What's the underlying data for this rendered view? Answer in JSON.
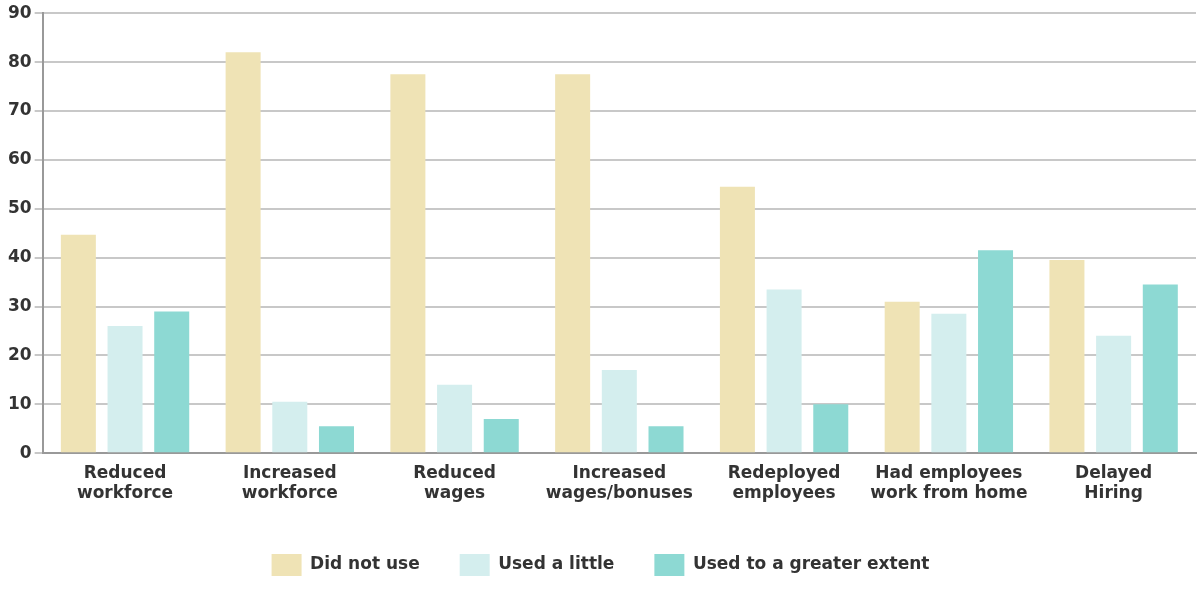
{
  "chart_data": {
    "type": "bar",
    "categories": [
      "Reduced workforce",
      "Increased workforce",
      "Reduced wages",
      "Increased wages/bonuses",
      "Redeployed employees",
      "Had employees work from home",
      "Delayed Hiring"
    ],
    "series": [
      {
        "name": "Did not use",
        "color": "#efe3b5",
        "values": [
          44.7,
          82,
          77.5,
          77.5,
          54.5,
          31,
          39.5
        ]
      },
      {
        "name": "Used a little",
        "color": "#d4eeee",
        "values": [
          26,
          10.5,
          14,
          17,
          33.5,
          28.5,
          24
        ]
      },
      {
        "name": "Used to a greater extent",
        "color": "#8dd9d3",
        "values": [
          29,
          5.5,
          7,
          5.5,
          10,
          41.5,
          34.5
        ]
      }
    ],
    "ylim": [
      0,
      90
    ],
    "yticks": [
      0,
      10,
      20,
      30,
      40,
      50,
      60,
      70,
      80,
      90
    ],
    "grid": "y",
    "legend": "bottom"
  }
}
